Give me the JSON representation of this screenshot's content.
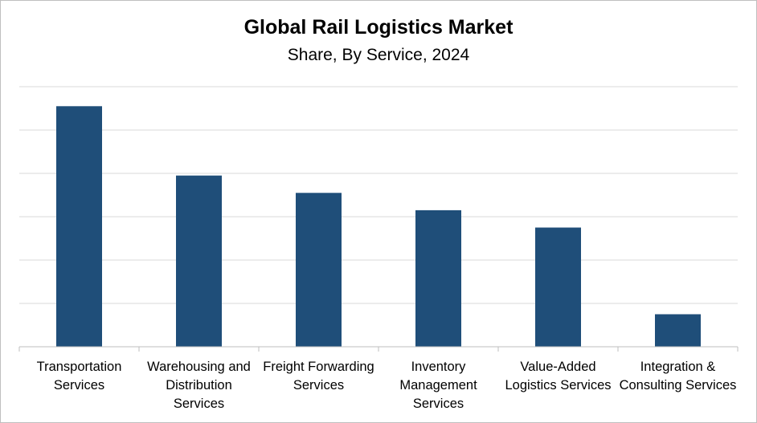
{
  "chart_data": {
    "type": "bar",
    "title": "Global Rail Logistics Market",
    "subtitle": "Share, By Service, 2024",
    "categories": [
      "Transportation\nServices",
      "Warehousing and\nDistribution\nServices",
      "Freight Forwarding\nServices",
      "Inventory\nManagement\nServices",
      "Value-Added\nLogistics Services",
      "Integration &\nConsulting Services"
    ],
    "values": [
      55.5,
      39.5,
      35.5,
      31.5,
      27.5,
      7.5
    ],
    "ylim": [
      0,
      60
    ],
    "grid": true,
    "legend": "none",
    "colors": {
      "bar": "#1f4e79",
      "grid": "#d9d9d9",
      "axis": "#bfbfbf"
    }
  }
}
